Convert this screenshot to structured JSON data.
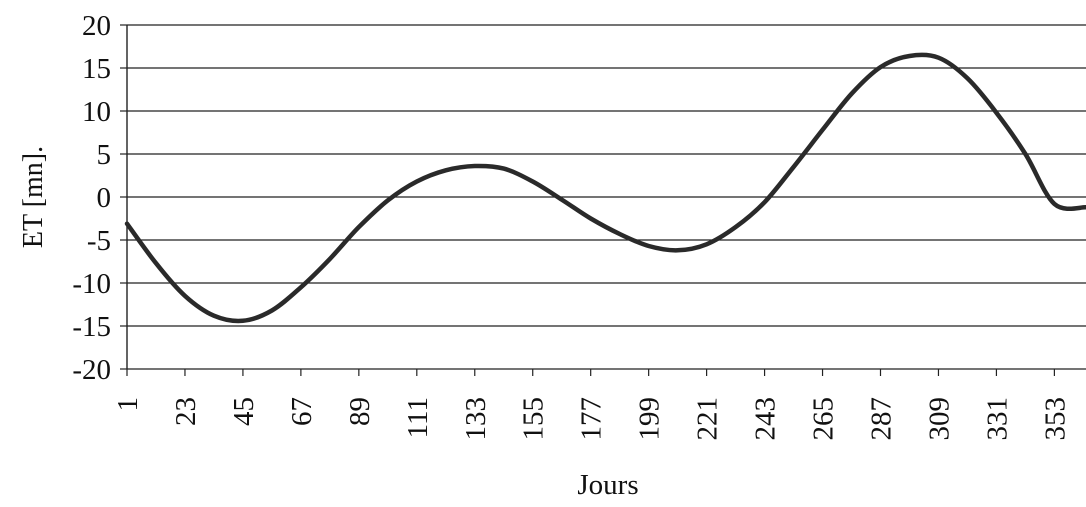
{
  "chart_data": {
    "type": "line",
    "title": "",
    "xlabel": "Jours",
    "ylabel": "ET [mn].",
    "ylim": [
      -20,
      20
    ],
    "xlim": [
      1,
      365
    ],
    "yticks": [
      20,
      15,
      10,
      5,
      0,
      -5,
      -10,
      -15,
      -20
    ],
    "yticklabels": [
      "20",
      "15",
      "10",
      "5",
      "0",
      "-5",
      "-10",
      "-15",
      "-20"
    ],
    "xticks": [
      1,
      23,
      45,
      67,
      89,
      111,
      133,
      155,
      177,
      199,
      221,
      243,
      265,
      287,
      309,
      331,
      353
    ],
    "xticklabels": [
      "1",
      "23",
      "45",
      "67",
      "89",
      "111",
      "133",
      "155",
      "177",
      "199",
      "221",
      "243",
      "265",
      "287",
      "309",
      "331",
      "353"
    ],
    "grid": "horizontal",
    "legend": "none",
    "series": [
      {
        "color": "#2a2a2a",
        "x": [
          1,
          12,
          23,
          34,
          45,
          56,
          67,
          78,
          89,
          100,
          111,
          122,
          133,
          144,
          155,
          166,
          177,
          188,
          199,
          210,
          221,
          232,
          243,
          254,
          265,
          276,
          287,
          298,
          309,
          320,
          331,
          342,
          353,
          365
        ],
        "y": [
          -3.1,
          -7.7,
          -11.5,
          -13.8,
          -14.4,
          -13.2,
          -10.5,
          -7.2,
          -3.5,
          -0.4,
          1.8,
          3.1,
          3.6,
          3.3,
          1.8,
          -0.3,
          -2.5,
          -4.3,
          -5.7,
          -6.2,
          -5.5,
          -3.5,
          -0.6,
          3.5,
          7.8,
          12.0,
          15.1,
          16.4,
          16.2,
          13.8,
          9.8,
          5.0,
          -0.8,
          -1.2
        ]
      }
    ]
  }
}
